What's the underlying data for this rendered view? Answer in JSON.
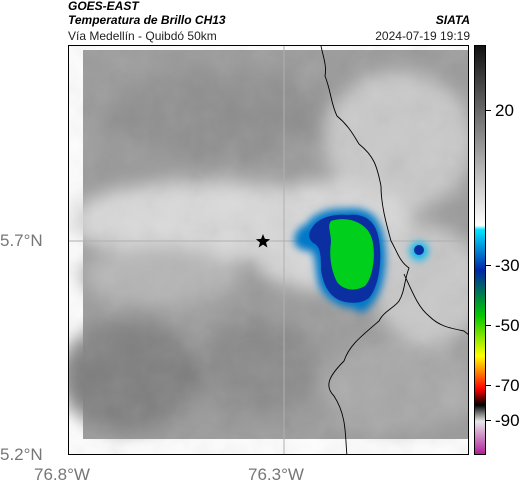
{
  "header": {
    "satellite": "GOES-EAST",
    "product": "Temperatura de Brillo CH13",
    "region": "Vía Medellín - Quibdó 50km",
    "org": "SIATA",
    "timestamp": "2024-07-19 19:19"
  },
  "axes": {
    "y_labels": [
      "5.7°N",
      "5.2°N"
    ],
    "x_labels": [
      "76.8°W",
      "76.3°W"
    ]
  },
  "colorbar": {
    "tick_labels": [
      "20",
      "-30",
      "-50",
      "-70",
      "-90"
    ],
    "colors": [
      "#121212",
      "#ffffff",
      "#00e5ff",
      "#0026a8",
      "#00c800",
      "#ffff00",
      "#ff0000",
      "#000000",
      "#e6e6e6",
      "#b0209b"
    ]
  },
  "map": {
    "marker_icon": "star-icon",
    "colors": {
      "cloud_light": "#e6e6e6",
      "ground_dark": "#7c7c7c",
      "convective_cyan": "#00c8ff",
      "convective_blue": "#0a2fa0",
      "convective_green": "#00cf1c",
      "coastline": "#000000"
    }
  }
}
